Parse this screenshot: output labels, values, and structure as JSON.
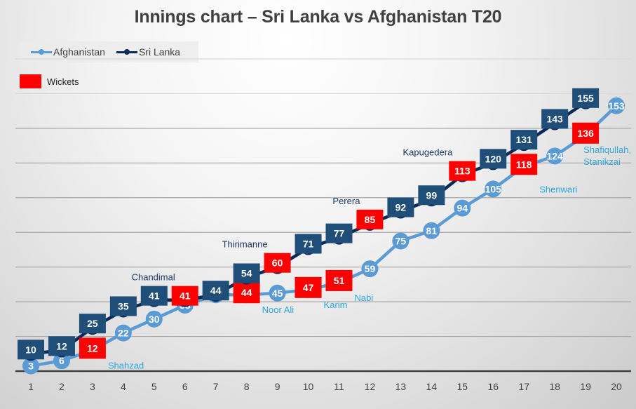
{
  "chart_data": {
    "type": "line",
    "title": "Innings chart – Sri Lanka vs Afghanistan T20",
    "xlabel": "",
    "ylabel": "",
    "x": [
      1,
      2,
      3,
      4,
      5,
      6,
      7,
      8,
      9,
      10,
      11,
      12,
      13,
      14,
      15,
      16,
      17,
      18,
      19,
      20
    ],
    "ylim": [
      0,
      180
    ],
    "y_major_unit": 20,
    "grid": true,
    "legend_position": "top-left",
    "series": [
      {
        "name": "Afghanistan",
        "color": "#5b9bd5",
        "marker": "circle",
        "values": [
          3,
          6,
          12,
          22,
          30,
          38,
          44,
          44,
          45,
          47,
          51,
          59,
          75,
          81,
          94,
          105,
          118,
          124,
          136,
          153
        ],
        "wickets_at_over": [
          3,
          8,
          10,
          11,
          17,
          19
        ]
      },
      {
        "name": "Sri Lanka",
        "color": "#0b2a5b",
        "marker": "square",
        "values": [
          10,
          12,
          25,
          35,
          41,
          41,
          44,
          54,
          60,
          71,
          77,
          85,
          92,
          99,
          113,
          120,
          131,
          143,
          155
        ],
        "wickets_at_over": [
          6,
          9,
          12,
          15
        ]
      }
    ],
    "wicket_legend": {
      "label": "Wickets",
      "color": "#ff0000"
    },
    "annotations": [
      {
        "series": "Afghanistan",
        "over": 3,
        "text": "Shahzad"
      },
      {
        "series": "Afghanistan",
        "over": 8,
        "text": "Noor Ali"
      },
      {
        "series": "Afghanistan",
        "over": 10,
        "text": "Karim"
      },
      {
        "series": "Afghanistan",
        "over": 11,
        "text": "Nabi"
      },
      {
        "series": "Afghanistan",
        "over": 17,
        "text": "Shenwari"
      },
      {
        "series": "Afghanistan",
        "over": 19,
        "text": "Shafiqullah,\nStanikzai"
      },
      {
        "series": "Sri Lanka",
        "over": 6,
        "text": "Chandimal"
      },
      {
        "series": "Sri Lanka",
        "over": 9,
        "text": "Thirimanne"
      },
      {
        "series": "Sri Lanka",
        "over": 12,
        "text": "Perera"
      },
      {
        "series": "Sri Lanka",
        "over": 15,
        "text": "Kapugedera"
      }
    ]
  },
  "colors": {
    "afghanistan": "#5b9bd5",
    "afghanistan_annotation": "#2fa6de",
    "sri_lanka_line": "#0b2a5b",
    "sri_lanka_marker": "#1f4e79",
    "sri_lanka_annotation": "#1f3864",
    "wicket": "#ff0000"
  }
}
